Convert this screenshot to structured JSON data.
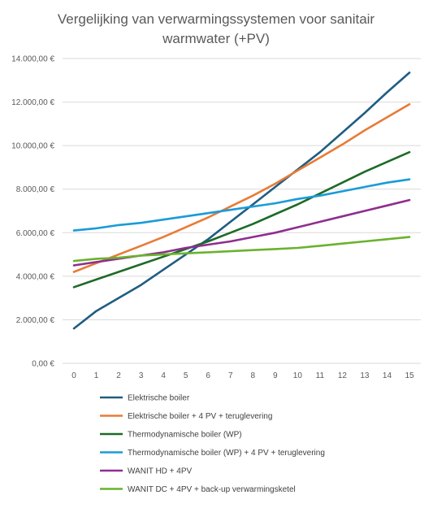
{
  "chart_data": {
    "type": "line",
    "title_lines": [
      "Vergelijking van verwarmingssystemen voor sanitair",
      "warmwater (+PV)"
    ],
    "xlabel": "",
    "ylabel": "",
    "x": [
      0,
      1,
      2,
      3,
      4,
      5,
      6,
      7,
      8,
      9,
      10,
      11,
      12,
      13,
      14,
      15
    ],
    "ylim": [
      0,
      14000
    ],
    "y_ticks": [
      0,
      2000,
      4000,
      6000,
      8000,
      10000,
      12000,
      14000
    ],
    "y_tick_labels": [
      "0,00 €",
      "2.000,00 €",
      "4.000,00 €",
      "6.000,00 €",
      "8.000,00 €",
      "10.000,00 €",
      "12.000,00 €",
      "14.000,00 €"
    ],
    "grid": "horizontal",
    "legend_position": "bottom",
    "series": [
      {
        "name": "Elektrische boiler",
        "color": "#1f5d82",
        "values": [
          1600,
          2400,
          3000,
          3600,
          4300,
          5000,
          5700,
          6500,
          7300,
          8100,
          8900,
          9700,
          10600,
          11500,
          12450,
          13350
        ]
      },
      {
        "name": "Elektrische boiler + 4 PV + teruglevering",
        "color": "#e87b36",
        "values": [
          4200,
          4600,
          5000,
          5400,
          5800,
          6250,
          6700,
          7200,
          7700,
          8250,
          8850,
          9450,
          10050,
          10700,
          11300,
          11900
        ]
      },
      {
        "name": "Thermodynamische boiler (WP)",
        "color": "#1e6a28",
        "values": [
          3500,
          3850,
          4200,
          4550,
          4900,
          5250,
          5600,
          6000,
          6400,
          6850,
          7300,
          7800,
          8300,
          8800,
          9250,
          9700
        ]
      },
      {
        "name": "Thermodynamische boiler (WP) + 4 PV + teruglevering",
        "color": "#1a9bd8",
        "values": [
          6100,
          6200,
          6350,
          6450,
          6600,
          6750,
          6900,
          7050,
          7200,
          7350,
          7550,
          7700,
          7900,
          8100,
          8300,
          8450
        ]
      },
      {
        "name": "WANIT HD + 4PV",
        "color": "#8e2e8f",
        "values": [
          4500,
          4650,
          4800,
          4950,
          5100,
          5300,
          5450,
          5600,
          5800,
          6000,
          6250,
          6500,
          6750,
          7000,
          7250,
          7500
        ]
      },
      {
        "name": "WANIT DC + 4PV + back-up verwarmingsketel",
        "color": "#6ab22f",
        "values": [
          4700,
          4800,
          4850,
          4950,
          5000,
          5050,
          5100,
          5150,
          5200,
          5250,
          5300,
          5400,
          5500,
          5600,
          5700,
          5800
        ]
      }
    ]
  }
}
